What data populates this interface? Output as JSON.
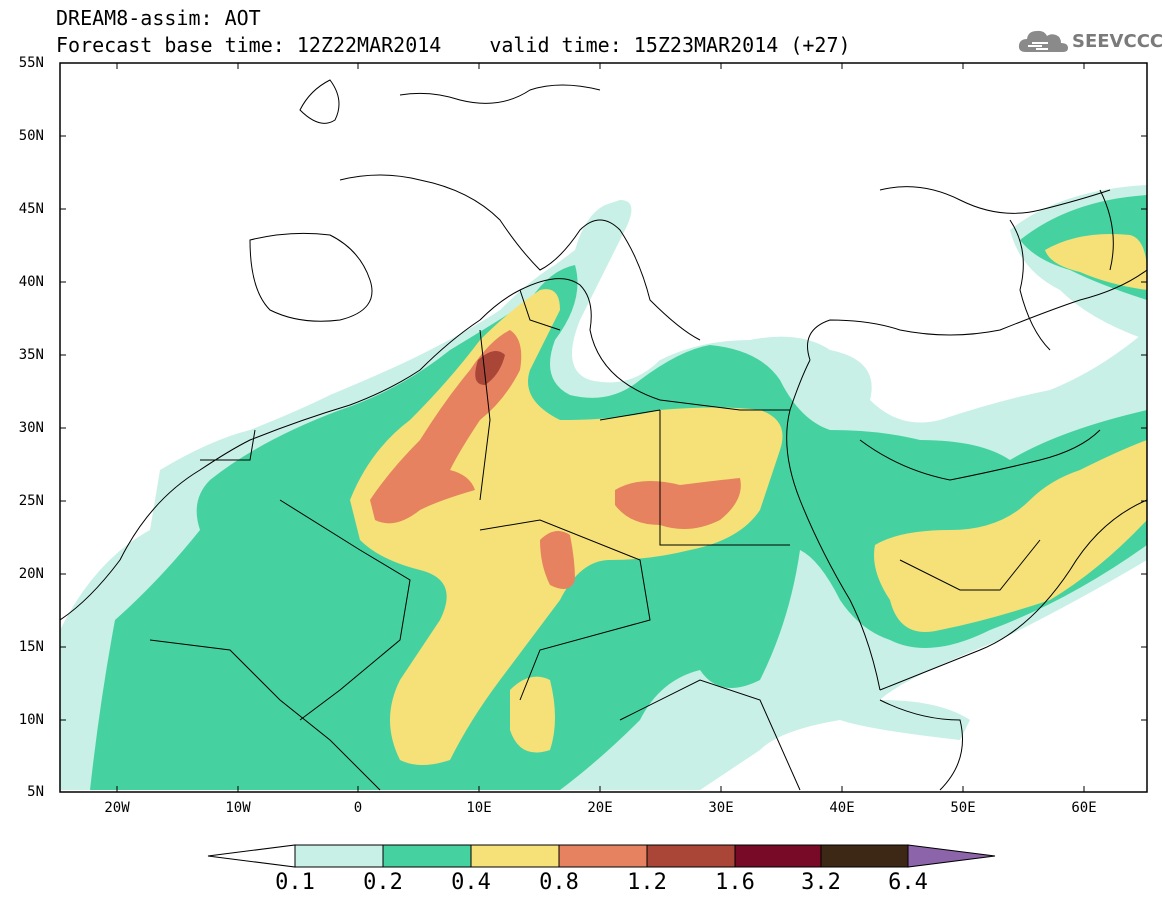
{
  "header": {
    "title_line1": "DREAM8-assim: AOT",
    "base_time": "Forecast base time: 12Z22MAR2014",
    "valid_time": "valid time: 15Z23MAR2014 (+27)"
  },
  "logo": {
    "text": "SEEVCCC",
    "icon": "cloud-icon"
  },
  "axes": {
    "lat_labels": [
      "55N",
      "50N",
      "45N",
      "40N",
      "35N",
      "30N",
      "25N",
      "20N",
      "15N",
      "10N",
      "5N"
    ],
    "lon_labels": [
      "20W",
      "10W",
      "0",
      "10E",
      "20E",
      "30E",
      "40E",
      "50E",
      "60E"
    ],
    "lat_range": [
      5,
      55
    ],
    "lon_range": [
      -25,
      65
    ]
  },
  "colorbar": {
    "labels": [
      "0.1",
      "0.2",
      "0.4",
      "0.8",
      "1.2",
      "1.6",
      "3.2",
      "6.4"
    ],
    "colors": [
      "#ffffff",
      "#c8f0e6",
      "#46d2a0",
      "#f5e178",
      "#e6825f",
      "#aa4637",
      "#780a28",
      "#3c2814",
      "#8c64aa"
    ]
  }
}
